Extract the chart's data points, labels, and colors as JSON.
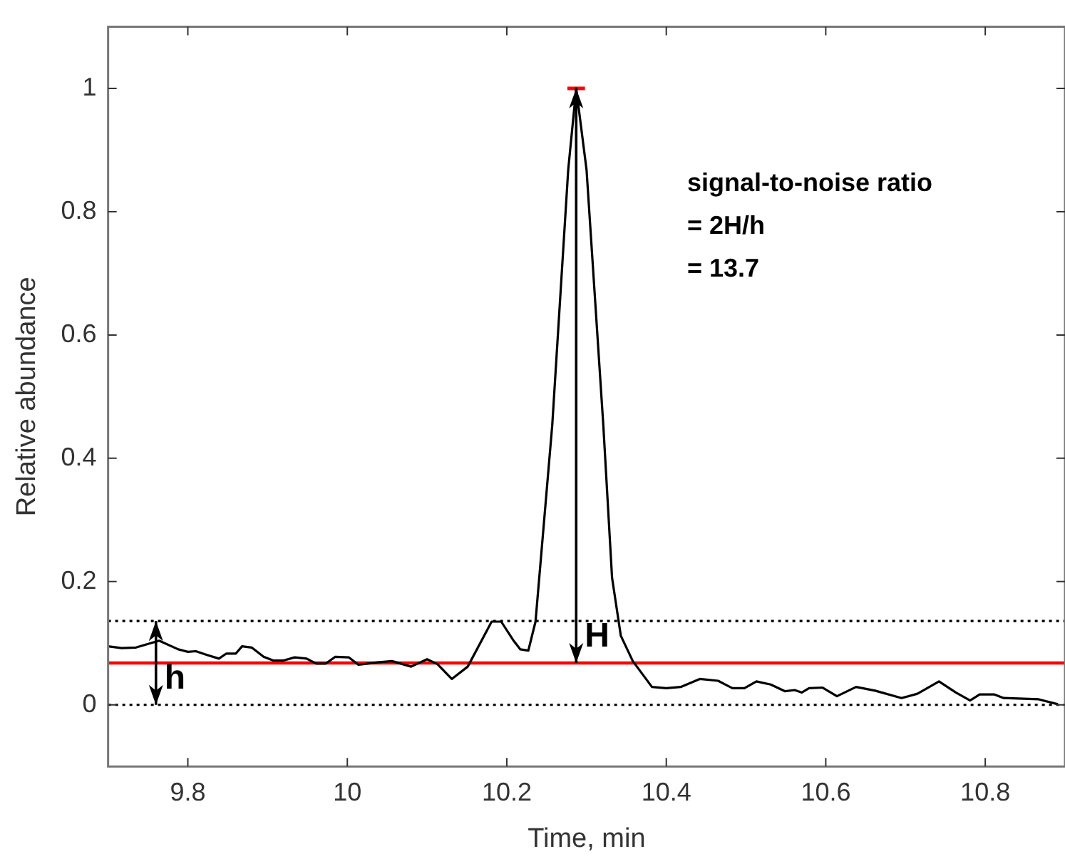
{
  "chart_data": {
    "type": "line",
    "xlabel": "Time, min",
    "ylabel": "Relative abundance",
    "xlim": [
      9.7,
      10.9
    ],
    "xticks": [
      9.8,
      10,
      10.2,
      10.4,
      10.6,
      10.8
    ],
    "ylim": [
      -0.1,
      1.1
    ],
    "yticks": [
      0,
      0.2,
      0.4,
      0.6,
      0.8,
      1
    ],
    "series": [
      {
        "color": "#000000",
        "x": [
          9.7,
          9.717,
          9.735,
          9.764,
          9.788,
          9.8,
          9.81,
          9.824,
          9.839,
          9.848,
          9.86,
          9.868,
          9.88,
          9.895,
          9.907,
          9.92,
          9.934,
          9.949,
          9.961,
          9.973,
          9.985,
          10.002,
          10.014,
          10.038,
          10.056,
          10.08,
          10.1,
          10.113,
          10.131,
          10.151,
          10.181,
          10.193,
          10.208,
          10.217,
          10.227,
          10.236,
          10.257,
          10.277,
          10.287,
          10.3,
          10.321,
          10.332,
          10.343,
          10.358,
          10.382,
          10.4,
          10.418,
          10.442,
          10.465,
          10.483,
          10.498,
          10.513,
          10.531,
          10.549,
          10.561,
          10.57,
          10.579,
          10.596,
          10.614,
          10.638,
          10.662,
          10.695,
          10.715,
          10.742,
          10.763,
          10.781,
          10.793,
          10.811,
          10.823,
          10.867,
          10.891
        ],
        "values": [
          0.095,
          0.092,
          0.093,
          0.104,
          0.09,
          0.086,
          0.087,
          0.081,
          0.075,
          0.083,
          0.083,
          0.095,
          0.093,
          0.078,
          0.072,
          0.072,
          0.077,
          0.075,
          0.067,
          0.067,
          0.078,
          0.077,
          0.065,
          0.069,
          0.071,
          0.062,
          0.074,
          0.066,
          0.042,
          0.062,
          0.135,
          0.135,
          0.105,
          0.09,
          0.088,
          0.135,
          0.454,
          0.868,
          1,
          0.868,
          0.454,
          0.206,
          0.112,
          0.071,
          0.029,
          0.027,
          0.029,
          0.042,
          0.039,
          0.027,
          0.027,
          0.038,
          0.033,
          0.022,
          0.024,
          0.02,
          0.027,
          0.028,
          0.014,
          0.029,
          0.023,
          0.011,
          0.018,
          0.038,
          0.02,
          0.007,
          0.017,
          0.017,
          0.011,
          0.009,
          0.001
        ]
      },
      {
        "type": "line",
        "color": "#ff0000",
        "x": [
          10.276,
          10.298
        ],
        "values": [
          1,
          1
        ]
      }
    ],
    "ref_lines": [
      {
        "axis": "y",
        "value": 0.068,
        "color": "#ff0000",
        "line_style": "solid"
      },
      {
        "axis": "y",
        "value": 0.136,
        "color": "#000000",
        "line_style": "dotted"
      },
      {
        "axis": "y",
        "value": 0,
        "color": "#000000",
        "line_style": "dotted"
      }
    ],
    "annotations": [
      "signal-to-noise ratio",
      "= 2H/h",
      "= 13.7",
      {
        "text": "H",
        "x": 10.287,
        "y": 1
      },
      {
        "text": "h",
        "x": 9.76,
        "y": 0.136
      }
    ],
    "marker": "none",
    "line_style": "solid",
    "legend": false
  }
}
